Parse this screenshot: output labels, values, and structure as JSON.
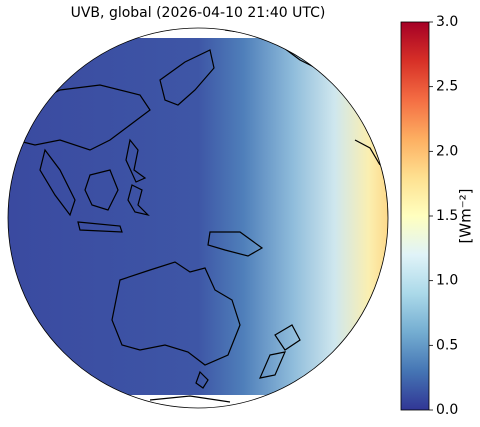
{
  "chart_data": {
    "type": "map",
    "title": "UVB, global (2026-04-10 21:40 UTC)",
    "colorbar": {
      "label": "[Wm⁻²]",
      "lim": [
        0,
        3
      ],
      "ticks": [
        {
          "value": 0,
          "label": "0.0"
        },
        0.5,
        {
          "value": 1,
          "label": "1.0"
        },
        1.5,
        {
          "value": 2,
          "label": "2.0"
        },
        2.5,
        {
          "value": 3,
          "label": "3.0"
        }
      ],
      "colors": [
        "#313695",
        "#4575b4",
        "#74add1",
        "#abd9e9",
        "#e0f3f8",
        "#ffffbf",
        "#fee090",
        "#fdae61",
        "#f46d43",
        "#d73027",
        "#a50026"
      ]
    }
  }
}
